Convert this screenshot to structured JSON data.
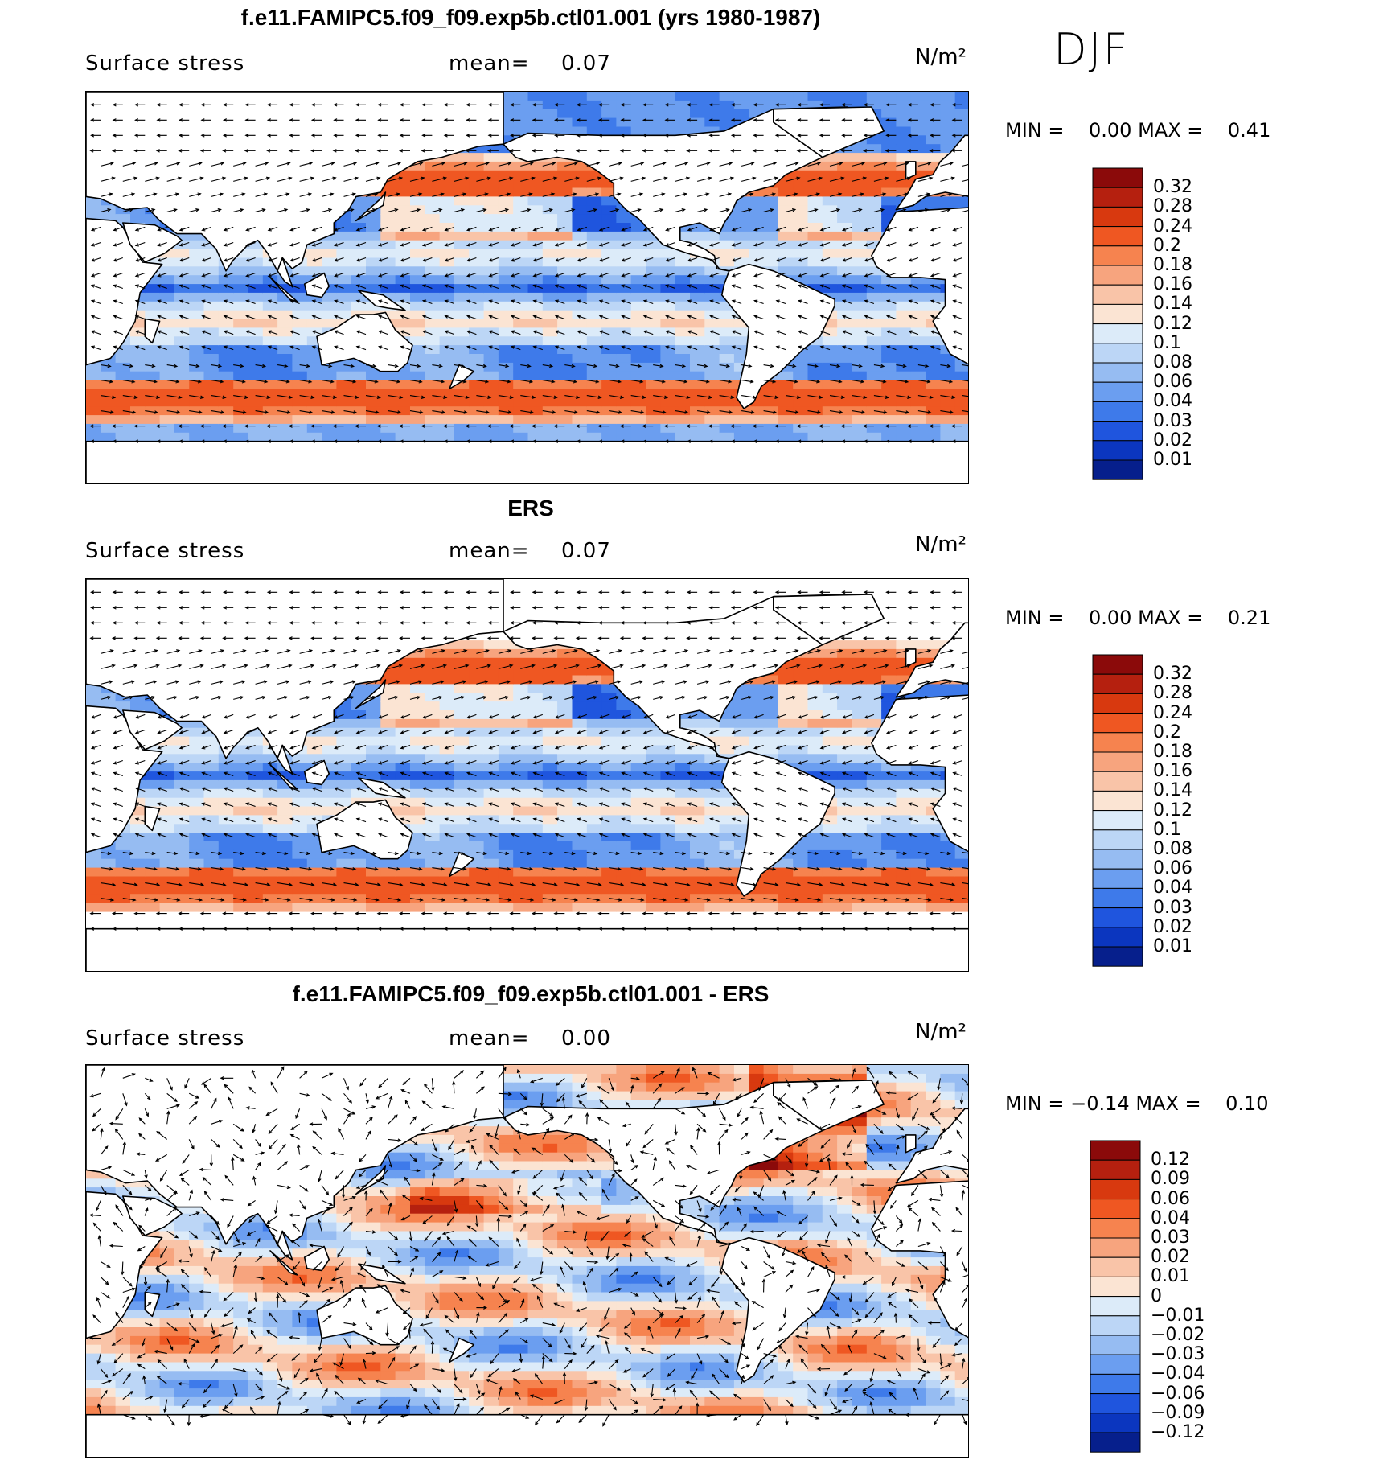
{
  "season": "DJF",
  "units_label": "N/m²",
  "panels": [
    {
      "title": "f.e11.FAMIPC5.f09_f09.exp5b.ctl01.001 (yrs 1980-1987)",
      "variable": "Surface stress",
      "mean_label": "mean=",
      "mean_value": "0.07",
      "min_label": "MIN =",
      "min_value": "0.00",
      "max_label": "MAX =",
      "max_value": "0.41",
      "kind": "model"
    },
    {
      "title": "ERS",
      "variable": "Surface stress",
      "mean_label": "mean=",
      "mean_value": "0.07",
      "min_label": "MIN =",
      "min_value": "0.00",
      "max_label": "MAX =",
      "max_value": "0.21",
      "kind": "obs"
    },
    {
      "title": "f.e11.FAMIPC5.f09_f09.exp5b.ctl01.001 - ERS",
      "variable": "Surface stress",
      "mean_label": "mean=",
      "mean_value": "0.00",
      "min_label": "MIN =",
      "min_value": "−0.14",
      "max_label": "MAX =",
      "max_value": "0.10",
      "kind": "diff"
    }
  ],
  "colorbars": [
    {
      "labels": [
        "0.32",
        "0.28",
        "0.24",
        "0.2",
        "0.18",
        "0.16",
        "0.14",
        "0.12",
        "0.1",
        "0.08",
        "0.06",
        "0.04",
        "0.03",
        "0.02",
        "0.01"
      ],
      "colors": [
        "#8b0a0a",
        "#b5200f",
        "#d8390f",
        "#ef5722",
        "#f6834f",
        "#f7a47e",
        "#f9c4a8",
        "#fbe4d3",
        "#dcebf9",
        "#bcd6f6",
        "#96bcf2",
        "#6b9ef0",
        "#3e7aea",
        "#1f55de",
        "#0b36bf",
        "#061f8c"
      ]
    },
    {
      "labels": [
        "0.32",
        "0.28",
        "0.24",
        "0.2",
        "0.18",
        "0.16",
        "0.14",
        "0.12",
        "0.1",
        "0.08",
        "0.06",
        "0.04",
        "0.03",
        "0.02",
        "0.01"
      ],
      "colors": [
        "#8b0a0a",
        "#b5200f",
        "#d8390f",
        "#ef5722",
        "#f6834f",
        "#f7a47e",
        "#f9c4a8",
        "#fbe4d3",
        "#dcebf9",
        "#bcd6f6",
        "#96bcf2",
        "#6b9ef0",
        "#3e7aea",
        "#1f55de",
        "#0b36bf",
        "#061f8c"
      ]
    },
    {
      "labels": [
        "0.12",
        "0.09",
        "0.06",
        "0.04",
        "0.03",
        "0.02",
        "0.01",
        "0",
        "−0.01",
        "−0.02",
        "−0.03",
        "−0.04",
        "−0.06",
        "−0.09",
        "−0.12"
      ],
      "colors": [
        "#8b0a0a",
        "#b5200f",
        "#d8390f",
        "#ef5722",
        "#f6834f",
        "#f7a47e",
        "#f9c4a8",
        "#fbe4d3",
        "#dcebf9",
        "#bcd6f6",
        "#96bcf2",
        "#6b9ef0",
        "#3e7aea",
        "#1f55de",
        "#0b36bf",
        "#061f8c"
      ]
    }
  ],
  "chart_data": [
    {
      "type": "heatmap",
      "title": "f.e11.FAMIPC5.f09_f09.exp5b.ctl01.001 (yrs 1980-1987)",
      "variable": "Surface stress",
      "units": "N/m²",
      "season": "DJF",
      "mean": 0.07,
      "min": 0.0,
      "max": 0.41,
      "contour_levels": [
        0.01,
        0.02,
        0.03,
        0.04,
        0.06,
        0.08,
        0.1,
        0.12,
        0.14,
        0.16,
        0.18,
        0.2,
        0.24,
        0.28,
        0.32
      ],
      "vectors": "wind stress arrows",
      "map": "global, Pacific-centered"
    },
    {
      "type": "heatmap",
      "title": "ERS",
      "variable": "Surface stress",
      "units": "N/m²",
      "season": "DJF",
      "mean": 0.07,
      "min": 0.0,
      "max": 0.21,
      "contour_levels": [
        0.01,
        0.02,
        0.03,
        0.04,
        0.06,
        0.08,
        0.1,
        0.12,
        0.14,
        0.16,
        0.18,
        0.2,
        0.24,
        0.28,
        0.32
      ],
      "vectors": "wind stress arrows",
      "map": "global, Pacific-centered"
    },
    {
      "type": "heatmap",
      "title": "f.e11.FAMIPC5.f09_f09.exp5b.ctl01.001 - ERS",
      "variable": "Surface stress",
      "units": "N/m²",
      "season": "DJF",
      "mean": 0.0,
      "min": -0.14,
      "max": 0.1,
      "contour_levels": [
        -0.12,
        -0.09,
        -0.06,
        -0.04,
        -0.03,
        -0.02,
        -0.01,
        0,
        0.01,
        0.02,
        0.03,
        0.04,
        0.06,
        0.09,
        0.12
      ],
      "vectors": "wind stress difference arrows",
      "map": "global, Pacific-centered"
    }
  ]
}
